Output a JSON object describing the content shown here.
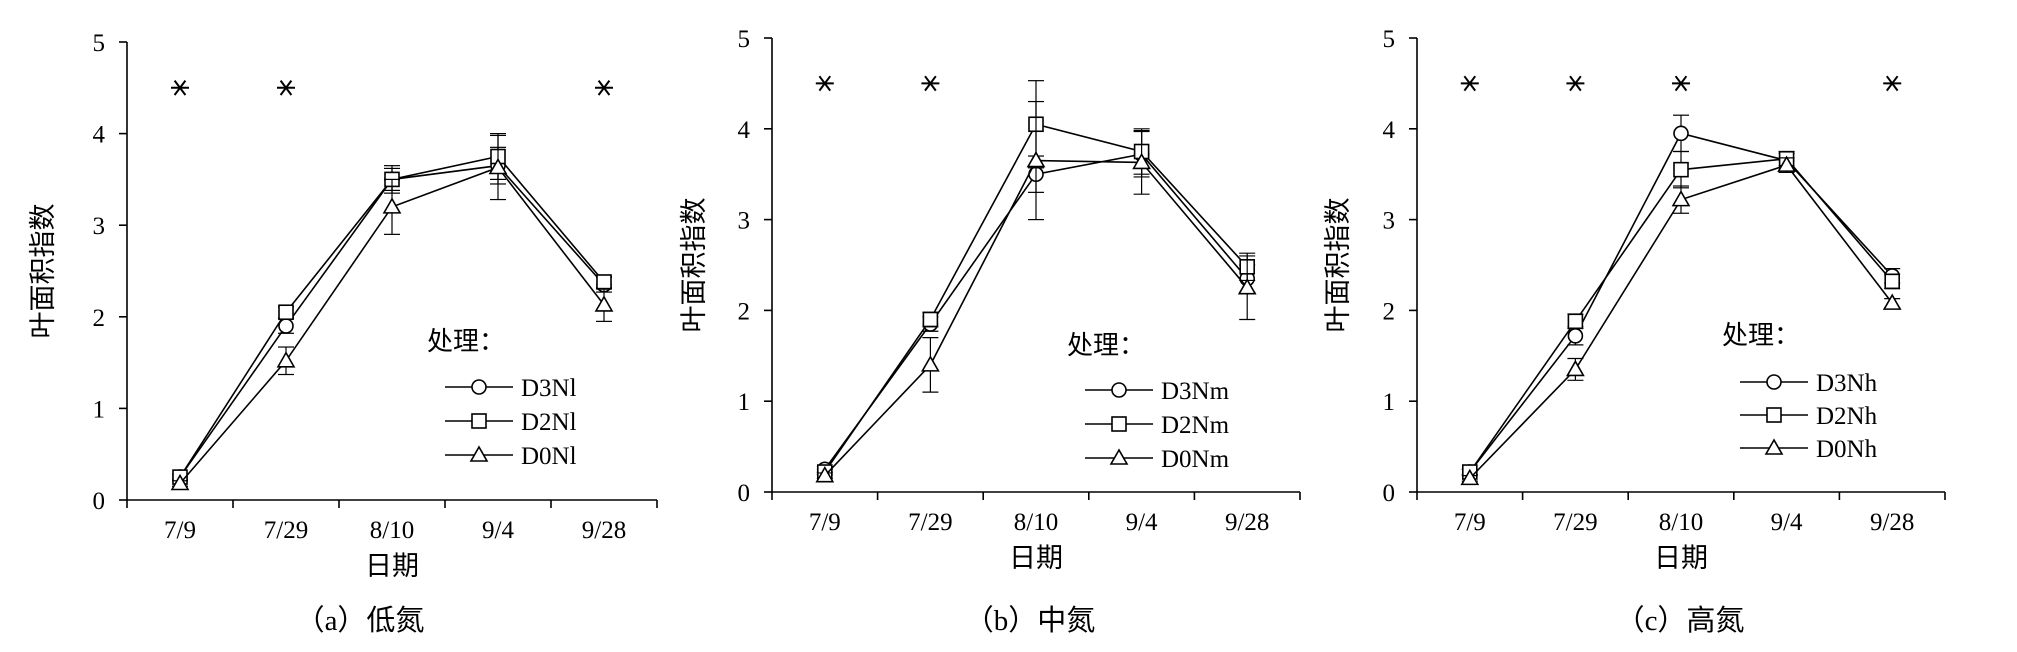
{
  "chart_data": [
    {
      "type": "line",
      "caption": "（a）低氮",
      "xlabel": "日期",
      "ylabel": "叶面积指数",
      "categories": [
        "7/9",
        "7/29",
        "8/10",
        "9/4",
        "9/28"
      ],
      "ylim": [
        0,
        5
      ],
      "yticks": [
        0,
        1,
        2,
        3,
        4,
        5
      ],
      "grid": false,
      "legend_title": "处理：",
      "legend_position": "bottom-right",
      "significance_marks": [
        "7/9",
        "7/29",
        "9/28"
      ],
      "significance_symbol": "*",
      "series": [
        {
          "name": "D3Nl",
          "marker": "circle",
          "values": [
            0.25,
            1.9,
            3.5,
            3.65,
            2.35
          ],
          "errors": [
            0.03,
            0.08,
            0.15,
            0.2,
            0.08
          ]
        },
        {
          "name": "D2Nl",
          "marker": "square",
          "values": [
            0.25,
            2.05,
            3.5,
            3.75,
            2.38
          ],
          "errors": [
            0.03,
            0.06,
            0.12,
            0.25,
            0.06
          ]
        },
        {
          "name": "D0Nl",
          "marker": "triangle",
          "values": [
            0.18,
            1.52,
            3.2,
            3.63,
            2.13
          ],
          "errors": [
            0.03,
            0.15,
            0.3,
            0.35,
            0.18
          ]
        }
      ]
    },
    {
      "type": "line",
      "caption": "（b）中氮",
      "xlabel": "日期",
      "ylabel": "叶面积指数",
      "categories": [
        "7/9",
        "7/29",
        "8/10",
        "9/4",
        "9/28"
      ],
      "ylim": [
        0,
        5
      ],
      "yticks": [
        0,
        1,
        2,
        3,
        4,
        5
      ],
      "grid": false,
      "legend_title": "处理：",
      "legend_position": "bottom-right",
      "significance_marks": [
        "7/9",
        "7/29"
      ],
      "significance_symbol": "*",
      "series": [
        {
          "name": "D3Nm",
          "marker": "circle",
          "values": [
            0.25,
            1.85,
            3.5,
            3.72,
            2.35
          ],
          "errors": [
            0.03,
            0.08,
            0.2,
            0.25,
            0.15
          ]
        },
        {
          "name": "D2Nm",
          "marker": "square",
          "values": [
            0.22,
            1.9,
            4.05,
            3.75,
            2.48
          ],
          "errors": [
            0.03,
            0.08,
            0.48,
            0.25,
            0.15
          ]
        },
        {
          "name": "D0Nm",
          "marker": "triangle",
          "values": [
            0.18,
            1.4,
            3.65,
            3.63,
            2.25
          ],
          "errors": [
            0.03,
            0.3,
            0.65,
            0.35,
            0.35
          ]
        }
      ]
    },
    {
      "type": "line",
      "caption": "（c）高氮",
      "xlabel": "日期",
      "ylabel": "叶面积指数",
      "categories": [
        "7/9",
        "7/29",
        "8/10",
        "9/4",
        "9/28"
      ],
      "ylim": [
        0,
        5
      ],
      "yticks": [
        0,
        1,
        2,
        3,
        4,
        5
      ],
      "grid": false,
      "legend_title": "处理：",
      "legend_position": "bottom-right",
      "significance_marks": [
        "7/9",
        "7/29",
        "8/10",
        "9/28"
      ],
      "significance_symbol": "*",
      "series": [
        {
          "name": "D3Nh",
          "marker": "circle",
          "values": [
            0.22,
            1.72,
            3.95,
            3.65,
            2.38
          ],
          "errors": [
            0.03,
            0.1,
            0.2,
            0.08,
            0.08
          ]
        },
        {
          "name": "D2Nh",
          "marker": "square",
          "values": [
            0.22,
            1.88,
            3.55,
            3.67,
            2.32
          ],
          "errors": [
            0.03,
            0.08,
            0.2,
            0.08,
            0.08
          ]
        },
        {
          "name": "D0Nh",
          "marker": "triangle",
          "values": [
            0.15,
            1.35,
            3.22,
            3.6,
            2.08
          ],
          "errors": [
            0.03,
            0.12,
            0.15,
            0.08,
            0.05
          ]
        }
      ]
    }
  ]
}
